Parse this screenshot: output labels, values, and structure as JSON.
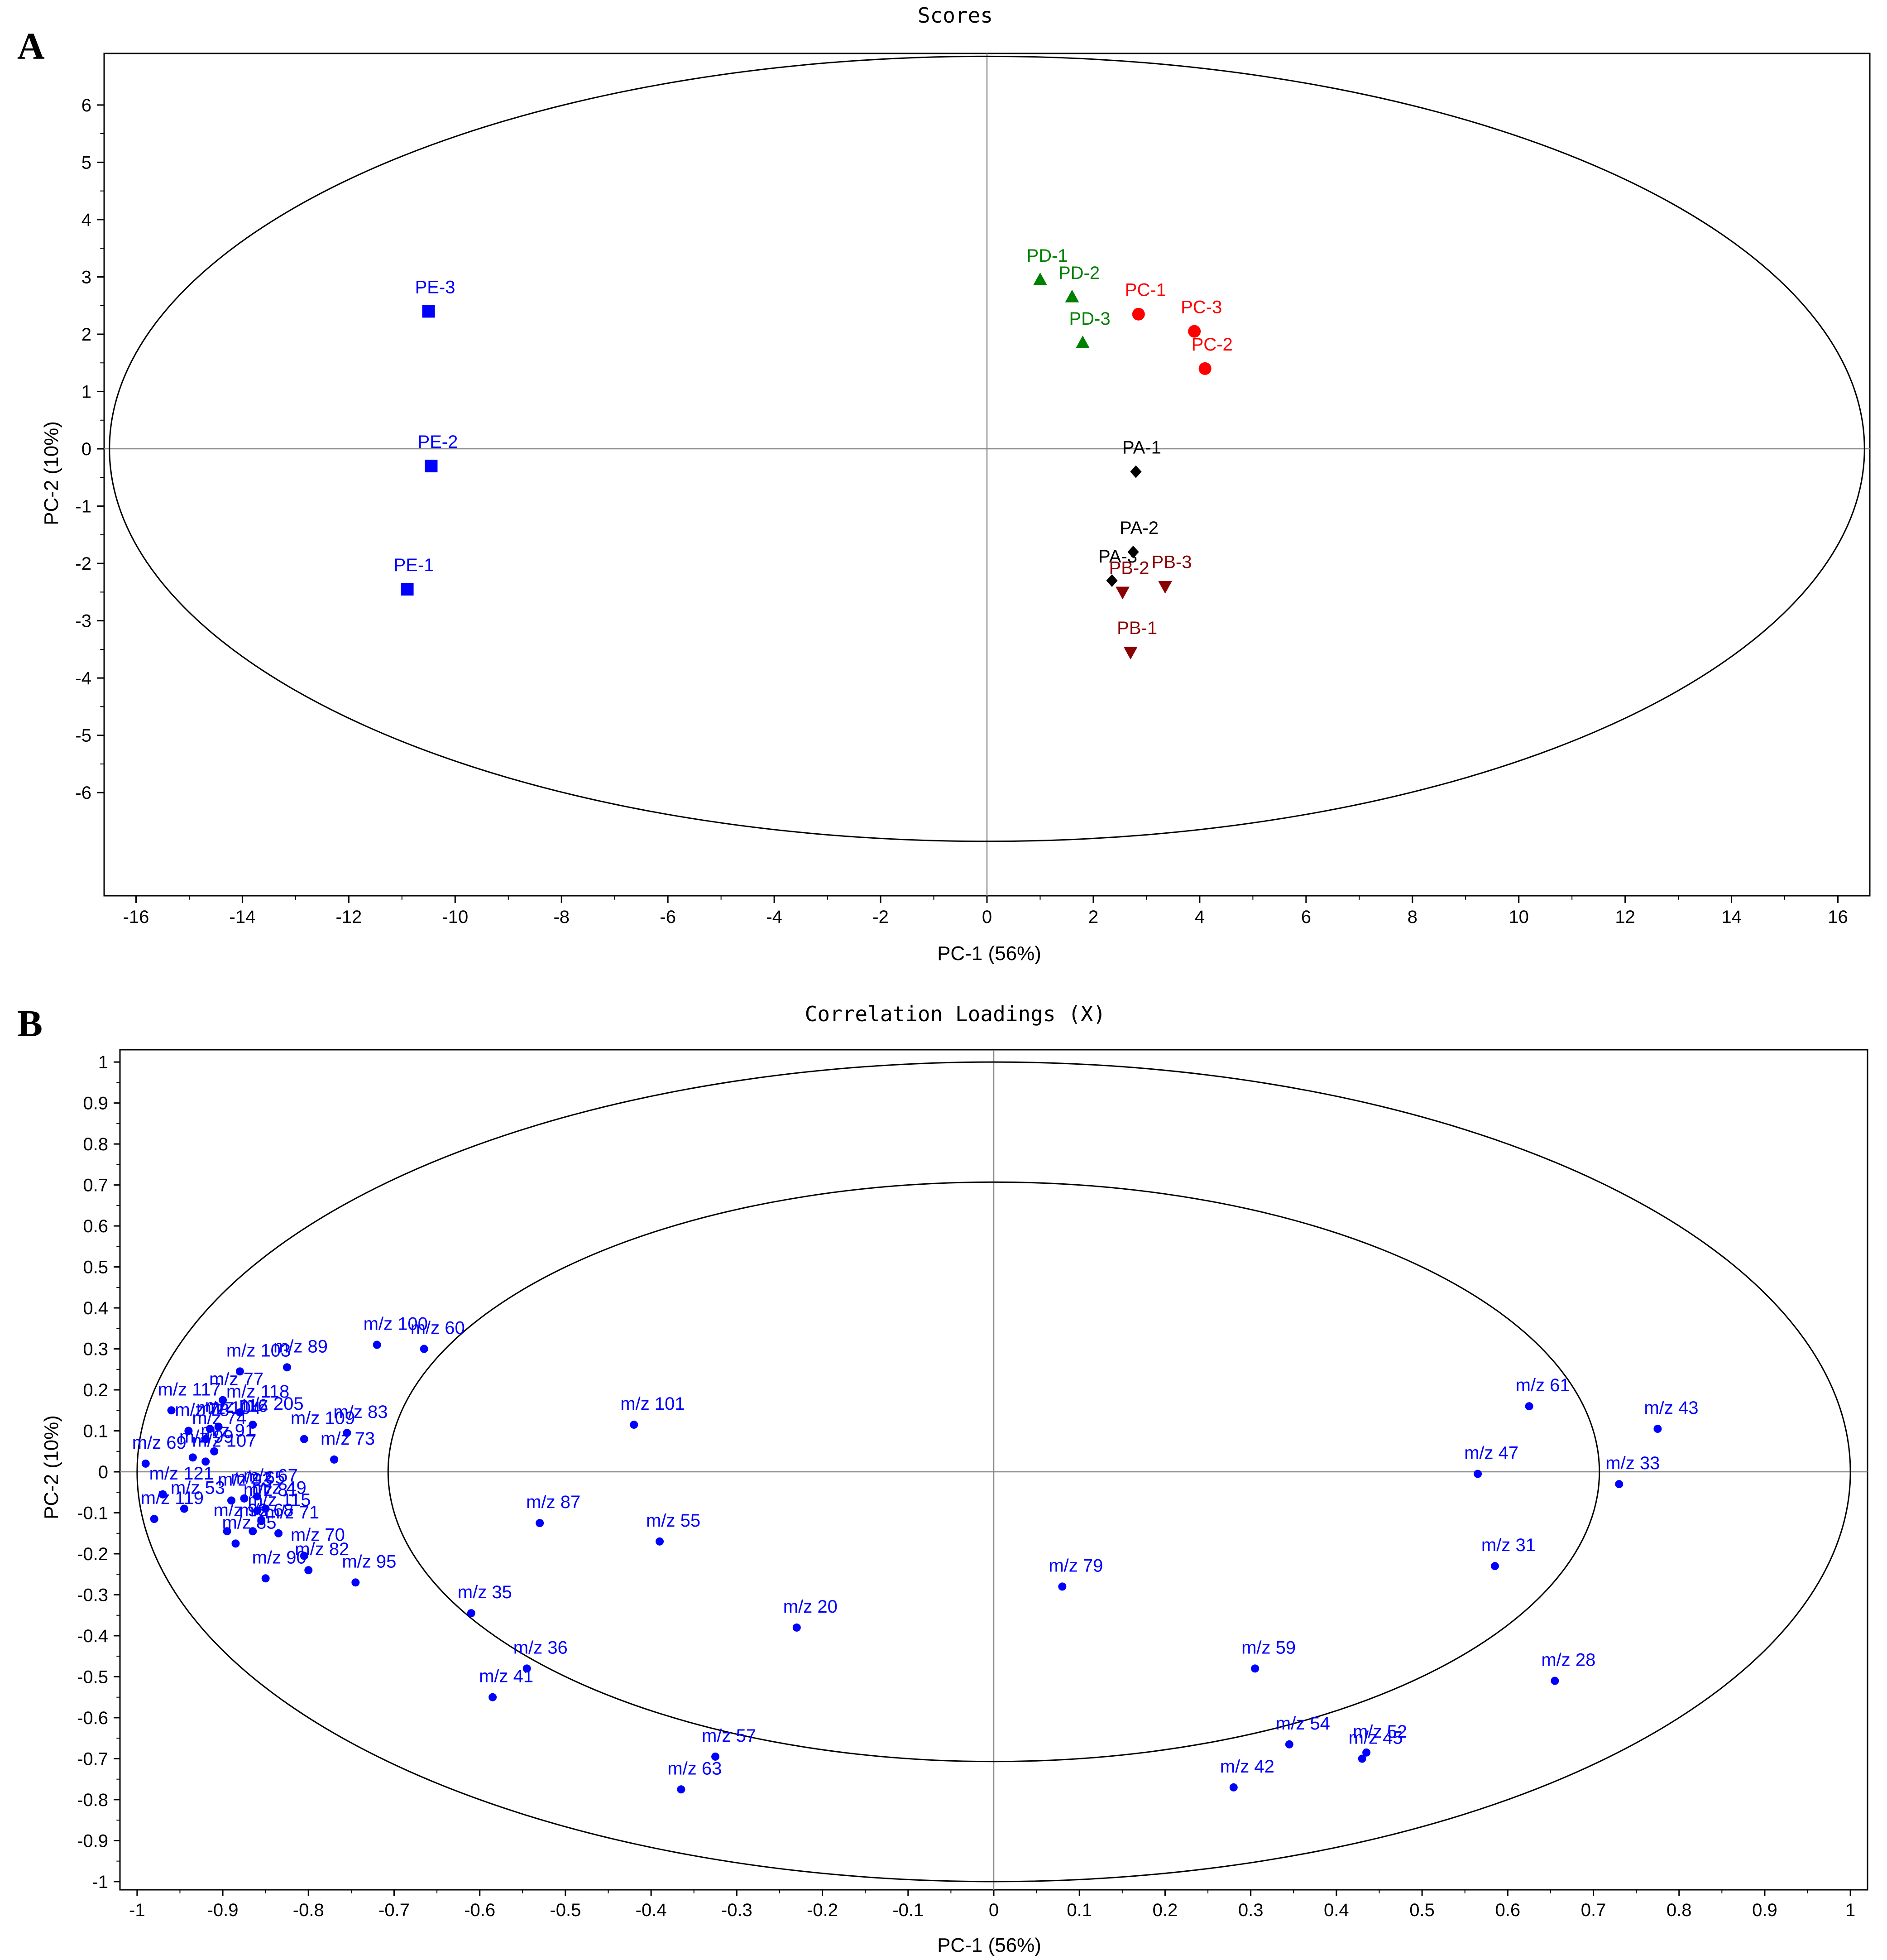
{
  "panels": {
    "a": {
      "letter": "A"
    },
    "b": {
      "letter": "B"
    }
  },
  "colors": {
    "PA": "#000000",
    "PB": "#8b0000",
    "PC": "#ff0000",
    "PD": "#008000",
    "PE": "#0000ff",
    "loadings": "#0000ff"
  },
  "chart_data": [
    {
      "type": "scatter",
      "title": "Scores",
      "xlabel": "PC-1 (56%)",
      "ylabel": "PC-2 (10%)",
      "xlim": [
        -16.6,
        16.6
      ],
      "ylim": [
        -7.8,
        6.9
      ],
      "xticks": [
        -16,
        -14,
        -12,
        -10,
        -8,
        -6,
        -4,
        -2,
        0,
        2,
        4,
        6,
        8,
        10,
        12,
        14,
        16
      ],
      "yticks": [
        -6,
        -5,
        -4,
        -3,
        -2,
        -1,
        0,
        1,
        2,
        3,
        4,
        5,
        6
      ],
      "grid": false,
      "ellipses": [
        {
          "rx": 16.5,
          "ry": 6.85
        }
      ],
      "series": [
        {
          "name": "PE",
          "marker": "square",
          "color": "#0000ff",
          "points": [
            {
              "label": "PE-1",
              "x": -10.9,
              "y": -2.45
            },
            {
              "label": "PE-2",
              "x": -10.45,
              "y": -0.3
            },
            {
              "label": "PE-3",
              "x": -10.5,
              "y": 2.4
            }
          ]
        },
        {
          "name": "PD",
          "marker": "triangle-up",
          "color": "#008000",
          "points": [
            {
              "label": "PD-1",
              "x": 1.0,
              "y": 2.95
            },
            {
              "label": "PD-2",
              "x": 1.6,
              "y": 2.65
            },
            {
              "label": "PD-3",
              "x": 1.8,
              "y": 1.85
            }
          ]
        },
        {
          "name": "PC",
          "marker": "circle",
          "color": "#ff0000",
          "points": [
            {
              "label": "PC-1",
              "x": 2.85,
              "y": 2.35
            },
            {
              "label": "PC-2",
              "x": 4.1,
              "y": 1.4
            },
            {
              "label": "PC-3",
              "x": 3.9,
              "y": 2.05
            }
          ]
        },
        {
          "name": "PA",
          "marker": "diamond",
          "color": "#000000",
          "points": [
            {
              "label": "PA-1",
              "x": 2.8,
              "y": -0.4
            },
            {
              "label": "PA-2",
              "x": 2.75,
              "y": -1.8
            },
            {
              "label": "PA-3",
              "x": 2.35,
              "y": -2.3
            }
          ]
        },
        {
          "name": "PB",
          "marker": "triangle-down",
          "color": "#8b0000",
          "points": [
            {
              "label": "PB-1",
              "x": 2.7,
              "y": -3.55
            },
            {
              "label": "PB-2",
              "x": 2.55,
              "y": -2.5
            },
            {
              "label": "PB-3",
              "x": 3.35,
              "y": -2.4
            }
          ]
        }
      ]
    },
    {
      "type": "scatter",
      "title": "Correlation Loadings (X)",
      "xlabel": "PC-1 (56%)",
      "ylabel": "PC-2 (10%)",
      "xlim": [
        -1.02,
        1.02
      ],
      "ylim": [
        -1.02,
        1.03
      ],
      "xticks": [
        -1,
        -0.9,
        -0.8,
        -0.7,
        -0.6,
        -0.5,
        -0.4,
        -0.3,
        -0.2,
        -0.1,
        0,
        0.1,
        0.2,
        0.3,
        0.4,
        0.5,
        0.6,
        0.7,
        0.8,
        0.9,
        1
      ],
      "yticks": [
        -1,
        -0.9,
        -0.8,
        -0.7,
        -0.6,
        -0.5,
        -0.4,
        -0.3,
        -0.2,
        -0.1,
        0,
        0.1,
        0.2,
        0.3,
        0.4,
        0.5,
        0.6,
        0.7,
        0.8,
        0.9,
        1
      ],
      "grid": false,
      "ellipses": [
        {
          "rx": 1.0,
          "ry": 1.0
        },
        {
          "rx": 0.707,
          "ry": 0.707
        }
      ],
      "series": [
        {
          "name": "loadings",
          "marker": "dot",
          "color": "#0000ff",
          "points": [
            {
              "label": "m/z 100",
              "x": -0.72,
              "y": 0.31
            },
            {
              "label": "m/z 60",
              "x": -0.665,
              "y": 0.3
            },
            {
              "label": "m/z 89",
              "x": -0.825,
              "y": 0.255
            },
            {
              "label": "m/z 103",
              "x": -0.88,
              "y": 0.245
            },
            {
              "label": "m/z 77",
              "x": -0.9,
              "y": 0.175
            },
            {
              "label": "m/z 118",
              "x": -0.88,
              "y": 0.145
            },
            {
              "label": "m/z 117",
              "x": -0.96,
              "y": 0.15
            },
            {
              "label": "m/z 205",
              "x": -0.865,
              "y": 0.115
            },
            {
              "label": "m/z 104",
              "x": -0.915,
              "y": 0.105
            },
            {
              "label": "m/z 116",
              "x": -0.905,
              "y": 0.11
            },
            {
              "label": "m/z 109",
              "x": -0.805,
              "y": 0.08
            },
            {
              "label": "m/z 83",
              "x": -0.755,
              "y": 0.095
            },
            {
              "label": "m/z 73",
              "x": -0.77,
              "y": 0.03
            },
            {
              "label": "m/z 74",
              "x": -0.92,
              "y": 0.08
            },
            {
              "label": "m/z 78",
              "x": -0.94,
              "y": 0.1
            },
            {
              "label": "m/z 91",
              "x": -0.91,
              "y": 0.05
            },
            {
              "label": "m/z 69",
              "x": -0.99,
              "y": 0.02
            },
            {
              "label": "m/z 107",
              "x": -0.92,
              "y": 0.025
            },
            {
              "label": "m/z 99",
              "x": -0.935,
              "y": 0.035
            },
            {
              "label": "m/z 121",
              "x": -0.97,
              "y": -0.055
            },
            {
              "label": "m/z 67",
              "x": -0.86,
              "y": -0.06
            },
            {
              "label": "m/z 65",
              "x": -0.875,
              "y": -0.065
            },
            {
              "label": "m/z 93",
              "x": -0.89,
              "y": -0.07
            },
            {
              "label": "m/z 119",
              "x": -0.98,
              "y": -0.115
            },
            {
              "label": "m/z 49",
              "x": -0.85,
              "y": -0.09
            },
            {
              "label": "m/z 81",
              "x": -0.86,
              "y": -0.095
            },
            {
              "label": "m/z 115",
              "x": -0.855,
              "y": -0.12
            },
            {
              "label": "m/z 53",
              "x": -0.945,
              "y": -0.09
            },
            {
              "label": "m/z 71",
              "x": -0.835,
              "y": -0.15
            },
            {
              "label": "m/z 68",
              "x": -0.865,
              "y": -0.145
            },
            {
              "label": "m/z 98",
              "x": -0.895,
              "y": -0.145
            },
            {
              "label": "m/z 85",
              "x": -0.885,
              "y": -0.175
            },
            {
              "label": "m/z 70",
              "x": -0.805,
              "y": -0.205
            },
            {
              "label": "m/z 82",
              "x": -0.8,
              "y": -0.24
            },
            {
              "label": "m/z 95",
              "x": -0.745,
              "y": -0.27
            },
            {
              "label": "m/z 90",
              "x": -0.85,
              "y": -0.26
            },
            {
              "label": "m/z 101",
              "x": -0.42,
              "y": 0.115
            },
            {
              "label": "m/z 87",
              "x": -0.53,
              "y": -0.125
            },
            {
              "label": "m/z 55",
              "x": -0.39,
              "y": -0.17
            },
            {
              "label": "m/z 35",
              "x": -0.61,
              "y": -0.345
            },
            {
              "label": "m/z 36",
              "x": -0.545,
              "y": -0.48
            },
            {
              "label": "m/z 41",
              "x": -0.585,
              "y": -0.55
            },
            {
              "label": "m/z 20",
              "x": -0.23,
              "y": -0.38
            },
            {
              "label": "m/z 57",
              "x": -0.325,
              "y": -0.695
            },
            {
              "label": "m/z 63",
              "x": -0.365,
              "y": -0.775
            },
            {
              "label": "m/z 79",
              "x": 0.08,
              "y": -0.28
            },
            {
              "label": "m/z 59",
              "x": 0.305,
              "y": -0.48
            },
            {
              "label": "m/z 54",
              "x": 0.345,
              "y": -0.665
            },
            {
              "label": "m/z 52",
              "x": 0.435,
              "y": -0.685
            },
            {
              "label": "m/z 45",
              "x": 0.43,
              "y": -0.7
            },
            {
              "label": "m/z 42",
              "x": 0.28,
              "y": -0.77
            },
            {
              "label": "m/z 61",
              "x": 0.625,
              "y": 0.16
            },
            {
              "label": "m/z 43",
              "x": 0.775,
              "y": 0.105
            },
            {
              "label": "m/z 47",
              "x": 0.565,
              "y": -0.005
            },
            {
              "label": "m/z 33",
              "x": 0.73,
              "y": -0.03
            },
            {
              "label": "m/z 31",
              "x": 0.585,
              "y": -0.23
            },
            {
              "label": "m/z 28",
              "x": 0.655,
              "y": -0.51
            }
          ]
        }
      ]
    }
  ]
}
